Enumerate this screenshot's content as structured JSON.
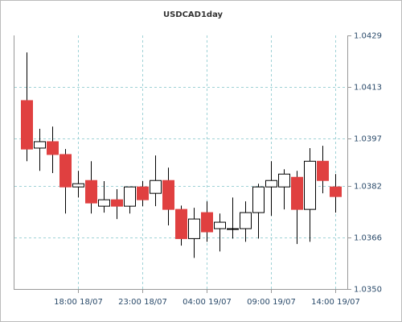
{
  "chart_data": {
    "type": "candlestick",
    "title": "USDCAD1day",
    "categories": [
      null,
      null,
      null,
      null,
      "18:00 18/07",
      null,
      null,
      null,
      null,
      "23:00 18/07",
      null,
      null,
      null,
      null,
      "04:00 19/07",
      null,
      null,
      null,
      null,
      "09:00 19/07",
      null,
      null,
      null,
      null,
      "14:00 19/07"
    ],
    "open": [
      1.04087,
      1.03939,
      1.03959,
      1.03919,
      1.03818,
      1.03838,
      1.03758,
      1.03778,
      1.03758,
      1.03818,
      1.03798,
      1.03838,
      1.03748,
      1.03657,
      1.03738,
      1.03688,
      1.03688,
      1.03688,
      1.03738,
      1.03818,
      1.03818,
      1.03848,
      1.03748,
      1.03898,
      1.03818
    ],
    "high": [
      1.04237,
      1.03999,
      1.04006,
      1.03936,
      1.03868,
      1.03898,
      1.03836,
      1.03811,
      1.03818,
      1.03836,
      1.03916,
      1.03878,
      1.0376,
      1.03753,
      1.03773,
      1.03735,
      1.03785,
      1.03773,
      1.03828,
      1.03898,
      1.03873,
      1.03868,
      1.03939,
      1.03946,
      1.03858
    ],
    "low": [
      1.03898,
      1.03868,
      1.03861,
      1.03735,
      1.03785,
      1.03735,
      1.03738,
      1.03718,
      1.03735,
      1.03758,
      1.03758,
      1.03698,
      1.03635,
      1.03597,
      1.03647,
      1.03617,
      1.03657,
      1.03647,
      1.03657,
      1.03728,
      1.03748,
      1.0364,
      1.03647,
      1.03798,
      1.03738
    ],
    "close": [
      1.03936,
      1.03959,
      1.03919,
      1.03818,
      1.03828,
      1.03768,
      1.03778,
      1.03758,
      1.03818,
      1.03778,
      1.03838,
      1.03748,
      1.03657,
      1.03718,
      1.03678,
      1.03708,
      1.03688,
      1.03738,
      1.03818,
      1.03838,
      1.03858,
      1.03748,
      1.03898,
      1.03838,
      1.03788
    ],
    "up_color": "#ffffff",
    "down_color": "#e04040",
    "ylim": [
      1.035,
      1.0429
    ],
    "yticks": [
      1.0429,
      1.0413,
      1.0397,
      1.0382,
      1.0366,
      {
        "value": 1.035,
        "label": "1.0350"
      }
    ],
    "grid": true
  }
}
